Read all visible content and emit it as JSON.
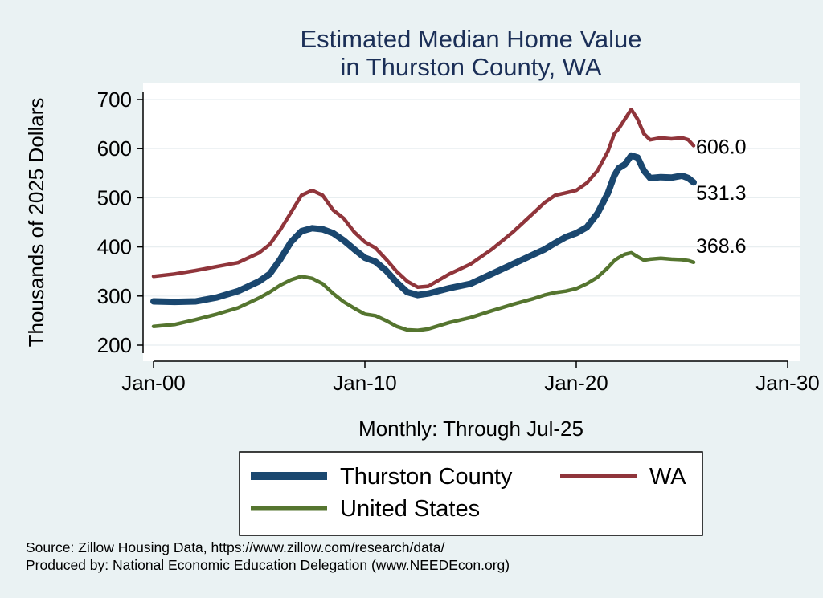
{
  "colors": {
    "background": "#eaf2f3",
    "plot_background": "#ffffff",
    "grid": "#e8eef0",
    "title": "#1b2f57",
    "thurston": "#1a476f",
    "wa": "#90353b",
    "us": "#55752f"
  },
  "chart_data": {
    "type": "line",
    "title": [
      "Estimated Median Home Value",
      "in Thurston County, WA"
    ],
    "xlabel": "Monthly: Through Jul-25",
    "ylabel": "Thousands of 2025 Dollars",
    "x_unit": "year",
    "xlim": [
      2000.0,
      2030.0
    ],
    "ylim": [
      200,
      700
    ],
    "x_ticks": [
      {
        "value": 2000,
        "label": "Jan-00"
      },
      {
        "value": 2010,
        "label": "Jan-10"
      },
      {
        "value": 2020,
        "label": "Jan-20"
      },
      {
        "value": 2030,
        "label": "Jan-30"
      }
    ],
    "y_ticks": [
      200,
      300,
      400,
      500,
      600,
      700
    ],
    "grid": true,
    "legend_position": "bottom",
    "series": [
      {
        "name": "Thurston County",
        "color": "#1a476f",
        "end_label": "531.3",
        "x": [
          2000.0,
          2001.0,
          2002.0,
          2003.0,
          2004.0,
          2005.0,
          2005.5,
          2006.0,
          2006.5,
          2007.0,
          2007.5,
          2008.0,
          2008.5,
          2009.0,
          2009.5,
          2010.0,
          2010.5,
          2011.0,
          2011.5,
          2012.0,
          2012.5,
          2013.0,
          2014.0,
          2015.0,
          2016.0,
          2017.0,
          2018.0,
          2018.5,
          2019.0,
          2019.5,
          2020.0,
          2020.5,
          2021.0,
          2021.5,
          2021.8,
          2022.0,
          2022.3,
          2022.6,
          2022.9,
          2023.2,
          2023.5,
          2024.0,
          2024.5,
          2025.0,
          2025.3,
          2025.55
        ],
        "values": [
          289,
          288,
          289,
          297,
          310,
          330,
          345,
          375,
          410,
          432,
          438,
          436,
          428,
          413,
          395,
          378,
          370,
          352,
          328,
          308,
          302,
          305,
          316,
          325,
          345,
          365,
          385,
          395,
          408,
          420,
          428,
          440,
          468,
          510,
          545,
          560,
          568,
          586,
          582,
          555,
          540,
          542,
          541,
          545,
          540,
          531.3
        ]
      },
      {
        "name": "WA",
        "color": "#90353b",
        "end_label": "606.0",
        "x": [
          2000.0,
          2001.0,
          2002.0,
          2003.0,
          2004.0,
          2005.0,
          2005.5,
          2006.0,
          2006.5,
          2007.0,
          2007.5,
          2008.0,
          2008.5,
          2009.0,
          2009.5,
          2010.0,
          2010.5,
          2011.0,
          2011.5,
          2012.0,
          2012.5,
          2013.0,
          2014.0,
          2015.0,
          2016.0,
          2017.0,
          2018.0,
          2018.5,
          2019.0,
          2019.5,
          2020.0,
          2020.5,
          2021.0,
          2021.5,
          2021.8,
          2022.0,
          2022.3,
          2022.6,
          2022.9,
          2023.2,
          2023.5,
          2024.0,
          2024.5,
          2025.0,
          2025.3,
          2025.55
        ],
        "values": [
          340,
          345,
          352,
          360,
          368,
          388,
          405,
          435,
          470,
          505,
          515,
          505,
          475,
          458,
          430,
          410,
          398,
          375,
          350,
          330,
          318,
          320,
          345,
          365,
          395,
          430,
          470,
          490,
          505,
          510,
          515,
          530,
          555,
          595,
          630,
          640,
          660,
          680,
          660,
          630,
          618,
          622,
          620,
          622,
          618,
          606.0
        ]
      },
      {
        "name": "United States",
        "color": "#55752f",
        "end_label": "368.6",
        "x": [
          2000.0,
          2001.0,
          2002.0,
          2003.0,
          2004.0,
          2005.0,
          2005.5,
          2006.0,
          2006.5,
          2007.0,
          2007.5,
          2008.0,
          2008.5,
          2009.0,
          2009.5,
          2010.0,
          2010.5,
          2011.0,
          2011.5,
          2012.0,
          2012.5,
          2013.0,
          2014.0,
          2015.0,
          2016.0,
          2017.0,
          2018.0,
          2018.5,
          2019.0,
          2019.5,
          2020.0,
          2020.5,
          2021.0,
          2021.5,
          2021.8,
          2022.0,
          2022.3,
          2022.6,
          2022.9,
          2023.2,
          2023.5,
          2024.0,
          2024.5,
          2025.0,
          2025.3,
          2025.55
        ],
        "values": [
          238,
          242,
          252,
          263,
          276,
          296,
          308,
          322,
          333,
          340,
          336,
          325,
          305,
          288,
          275,
          263,
          260,
          250,
          238,
          231,
          230,
          233,
          246,
          256,
          270,
          283,
          295,
          302,
          307,
          310,
          315,
          325,
          338,
          358,
          372,
          378,
          385,
          388,
          380,
          373,
          375,
          377,
          375,
          374,
          372,
          368.6
        ]
      }
    ],
    "legend": [
      {
        "series": "Thurston County",
        "label": "Thurston County"
      },
      {
        "series": "WA",
        "label": "WA"
      },
      {
        "series": "United States",
        "label": "United States"
      }
    ]
  },
  "source": {
    "line1": "Source: Zillow Housing Data, https://www.zillow.com/research/data/",
    "line2": "Produced by: National Economic Education Delegation (www.NEEDEcon.org)"
  }
}
